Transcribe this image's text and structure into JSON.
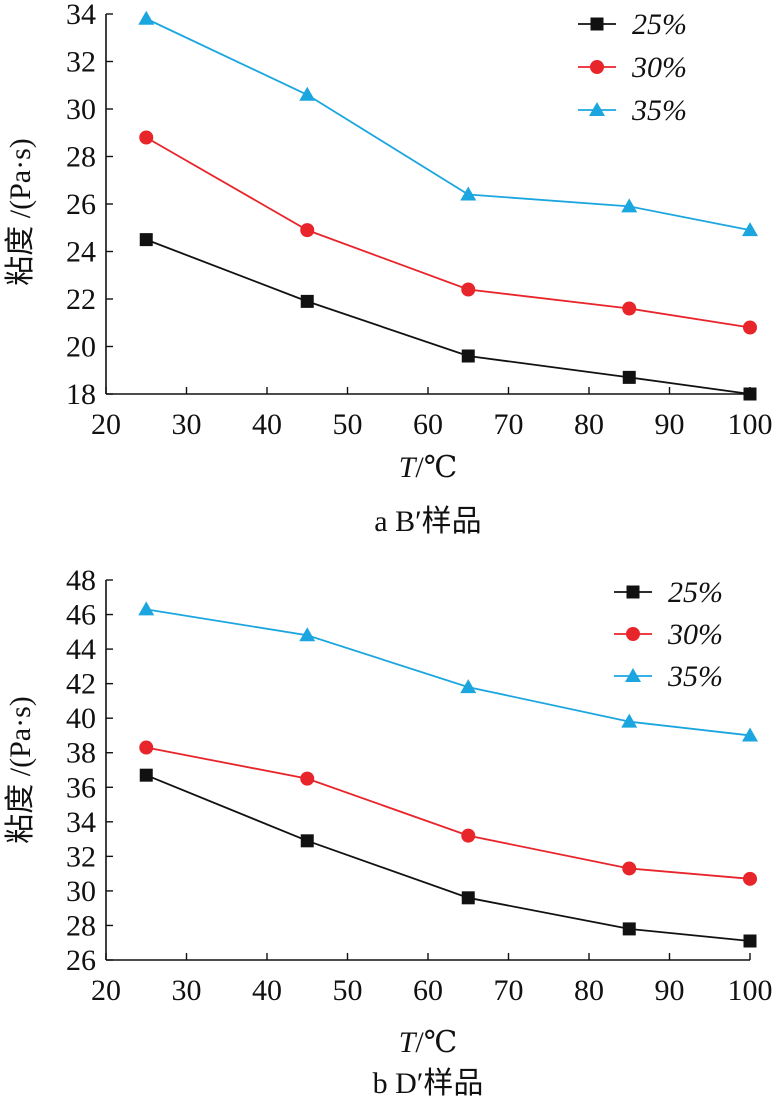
{
  "chart_data": [
    {
      "type": "line",
      "caption": "a  B′样品",
      "xlabel_var": "T",
      "xlabel_unit": "/℃",
      "ylabel": "粘度 /(Pa·s)",
      "xlim": [
        20,
        100
      ],
      "ylim": [
        18,
        34
      ],
      "xticks": [
        20,
        30,
        40,
        50,
        60,
        70,
        80,
        90,
        100
      ],
      "yticks": [
        18,
        20,
        22,
        24,
        26,
        28,
        30,
        32,
        34
      ],
      "x": [
        25,
        45,
        65,
        85,
        100
      ],
      "series": [
        {
          "name": "25%",
          "values": [
            24.5,
            21.9,
            19.6,
            18.7,
            18.0
          ],
          "color": "#111111",
          "marker": "square"
        },
        {
          "name": "30%",
          "values": [
            28.8,
            24.9,
            22.4,
            21.6,
            20.8
          ],
          "color": "#e8252b",
          "marker": "circle"
        },
        {
          "name": "35%",
          "values": [
            33.8,
            30.6,
            26.4,
            25.9,
            24.9
          ],
          "color": "#1ba6e0",
          "marker": "triangle"
        }
      ],
      "legend_position": "top-right"
    },
    {
      "type": "line",
      "caption": "b  D′样品",
      "xlabel_var": "T",
      "xlabel_unit": "/℃",
      "ylabel": "粘度 /(Pa·s)",
      "xlim": [
        20,
        100
      ],
      "ylim": [
        26,
        48
      ],
      "xticks": [
        20,
        30,
        40,
        50,
        60,
        70,
        80,
        90,
        100
      ],
      "yticks": [
        26,
        28,
        30,
        32,
        34,
        36,
        38,
        40,
        42,
        44,
        46,
        48
      ],
      "x": [
        25,
        45,
        65,
        85,
        100
      ],
      "series": [
        {
          "name": "25%",
          "values": [
            36.7,
            32.9,
            29.6,
            27.8,
            27.1
          ],
          "color": "#111111",
          "marker": "square"
        },
        {
          "name": "30%",
          "values": [
            38.3,
            36.5,
            33.2,
            31.3,
            30.7
          ],
          "color": "#e8252b",
          "marker": "circle"
        },
        {
          "name": "35%",
          "values": [
            46.3,
            44.8,
            41.8,
            39.8,
            39.0
          ],
          "color": "#1ba6e0",
          "marker": "triangle"
        }
      ],
      "legend_position": "top-right"
    }
  ]
}
